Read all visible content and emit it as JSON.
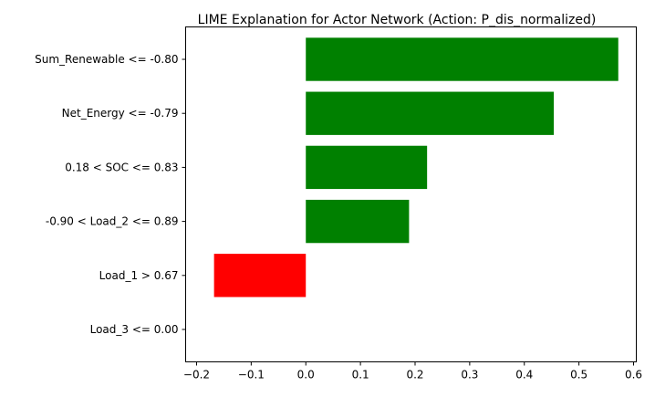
{
  "chart_data": {
    "type": "bar",
    "orientation": "horizontal",
    "title": "LIME Explanation for Actor Network (Action: P_dis_normalized)",
    "xlabel": "",
    "ylabel": "",
    "categories": [
      "Sum_Renewable <= -0.80",
      "Net_Energy <= -0.79",
      "0.18 < SOC <= 0.83",
      "-0.90 < Load_2 <= 0.89",
      "Load_1 > 0.67",
      "Load_3 <= 0.00"
    ],
    "values": [
      0.572,
      0.454,
      0.222,
      0.189,
      -0.168,
      0.0
    ],
    "xlim": [
      -0.22,
      0.605
    ],
    "xticks": [
      -0.2,
      -0.1,
      0.0,
      0.1,
      0.2,
      0.3,
      0.4,
      0.5,
      0.6
    ],
    "xtick_labels": [
      "−0.2",
      "−0.1",
      "0.0",
      "0.1",
      "0.2",
      "0.3",
      "0.4",
      "0.5",
      "0.6"
    ],
    "positive_color": "#008000",
    "negative_color": "#ff0000",
    "grid": false,
    "legend": false
  }
}
